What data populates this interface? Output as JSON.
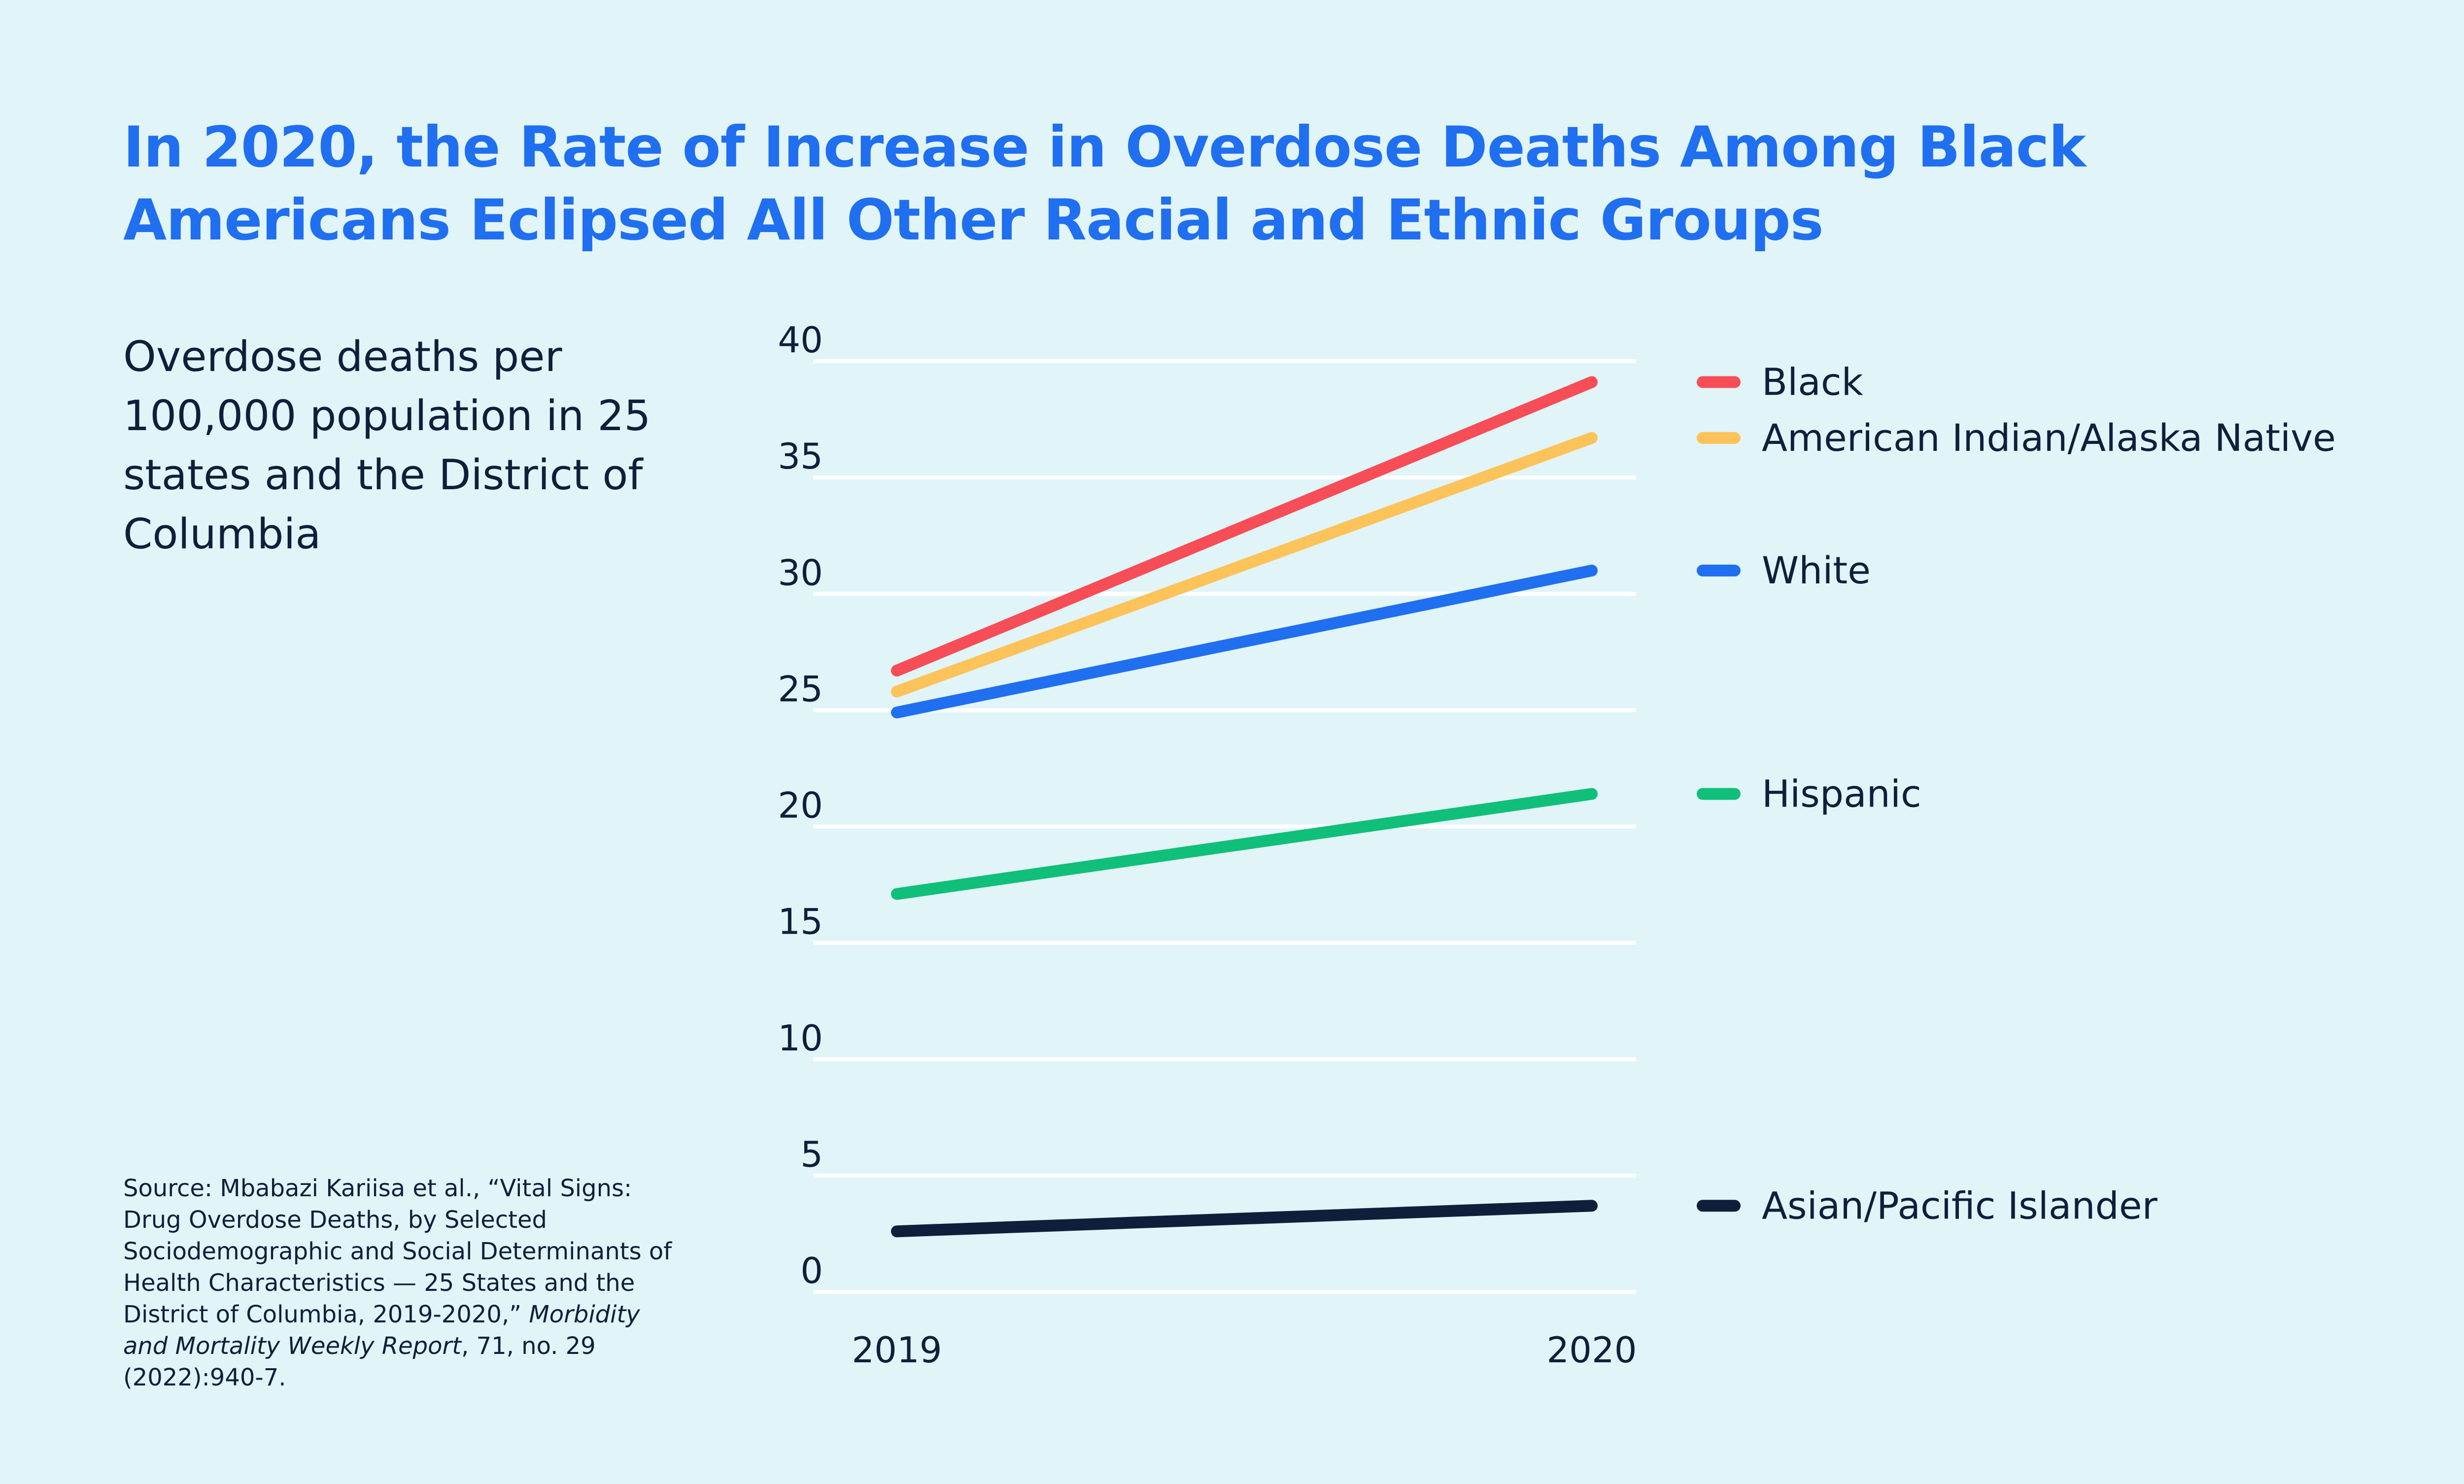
{
  "header": {
    "title": "In 2020, the Rate of Increase in Overdose Deaths Among Black Americans Eclipsed All Other Racial and Ethnic Groups",
    "subtitle": "Overdose deaths per 100,000 population in 25 states and the District of Columbia"
  },
  "source": {
    "part1": "Source: Mbabazi Kariisa et al., “Vital Signs: Drug Overdose Deaths, by Selected Sociodemographic and Social Determinants of Health Characteristics — 25 States and the District of Columbia, 2019-2020,” ",
    "journal": "Morbidity and Mortality Weekly Report",
    "part2": ", 71, no. 29 (2022):940-7."
  },
  "colors": {
    "background": "#e1f4f8",
    "title": "#1f6ff0",
    "text": "#0f1f3b",
    "grid": "#ffffff"
  },
  "chart_data": {
    "type": "line",
    "x": [
      "2019",
      "2020"
    ],
    "ylim": [
      0,
      40
    ],
    "yticks": [
      0,
      5,
      10,
      15,
      20,
      25,
      30,
      35,
      40
    ],
    "grid": true,
    "legend_placement": "right",
    "series": [
      {
        "name": "Black",
        "values": [
          26.7,
          39.1
        ],
        "color": "#f64d57"
      },
      {
        "name": "American Indian/Alaska Native",
        "values": [
          25.8,
          36.7
        ],
        "color": "#fcc35a"
      },
      {
        "name": "White",
        "values": [
          24.9,
          31.0
        ],
        "color": "#1f6ff0"
      },
      {
        "name": "Hispanic",
        "values": [
          17.1,
          21.4
        ],
        "color": "#10bf79"
      },
      {
        "name": "Asian/Pacific Islander",
        "values": [
          2.6,
          3.7
        ],
        "color": "#0f1f3b"
      }
    ]
  }
}
